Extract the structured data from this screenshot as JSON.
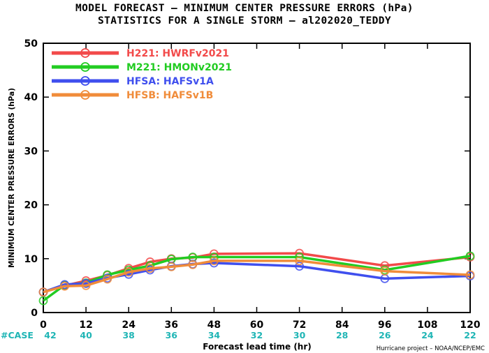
{
  "title_line1": "MODEL FORECAST – MINIMUM CENTER PRESSURE ERRORS (hPa)",
  "title_line2": "STATISTICS FOR A SINGLE STORM – al202020_TEDDY",
  "credit": "Hurricane project – NOAA/NCEP/EMC",
  "case_label": "#CASE",
  "chart_data": {
    "type": "line",
    "xlabel": "Forecast lead time (hr)",
    "ylabel": "MINIMUM CENTER PRESSURE ERRORS (hPa)",
    "xlim": [
      0,
      120
    ],
    "ylim": [
      0,
      50
    ],
    "x_ticks": [
      0,
      12,
      24,
      36,
      48,
      60,
      72,
      84,
      96,
      108,
      120
    ],
    "y_ticks": [
      0,
      10,
      20,
      30,
      40,
      50
    ],
    "case_counts": [
      42,
      40,
      38,
      36,
      34,
      32,
      30,
      28,
      26,
      24,
      22
    ],
    "legend_position": "top-left",
    "grid": false,
    "series": [
      {
        "name": "H221: HWRFv2021",
        "color": "#f24a4a",
        "x": [
          0,
          6,
          12,
          18,
          24,
          30,
          36,
          42,
          48,
          72,
          96,
          120
        ],
        "y": [
          3.8,
          5.0,
          5.9,
          6.9,
          8.2,
          9.4,
          10.0,
          10.2,
          10.9,
          11.0,
          8.7,
          10.3
        ]
      },
      {
        "name": "M221: HMONv2021",
        "color": "#22cc22",
        "x": [
          0,
          6,
          12,
          18,
          24,
          30,
          36,
          42,
          48,
          72,
          96,
          120
        ],
        "y": [
          2.2,
          5.1,
          5.5,
          7.0,
          7.9,
          8.7,
          9.9,
          10.3,
          10.3,
          10.3,
          7.9,
          10.5
        ]
      },
      {
        "name": "HFSA: HAFSv1A",
        "color": "#3f4fee",
        "x": [
          0,
          6,
          12,
          18,
          24,
          30,
          36,
          42,
          48,
          72,
          96,
          120
        ],
        "y": [
          3.8,
          5.2,
          5.4,
          6.4,
          7.1,
          7.9,
          8.6,
          9.0,
          9.2,
          8.6,
          6.3,
          6.8
        ]
      },
      {
        "name": "HFSB: HAFSv1B",
        "color": "#f08c3a",
        "x": [
          0,
          6,
          12,
          18,
          24,
          30,
          36,
          42,
          48,
          72,
          96,
          120
        ],
        "y": [
          3.8,
          4.9,
          5.0,
          6.2,
          7.5,
          8.2,
          8.5,
          8.9,
          9.6,
          9.6,
          7.7,
          7.0
        ]
      }
    ]
  }
}
